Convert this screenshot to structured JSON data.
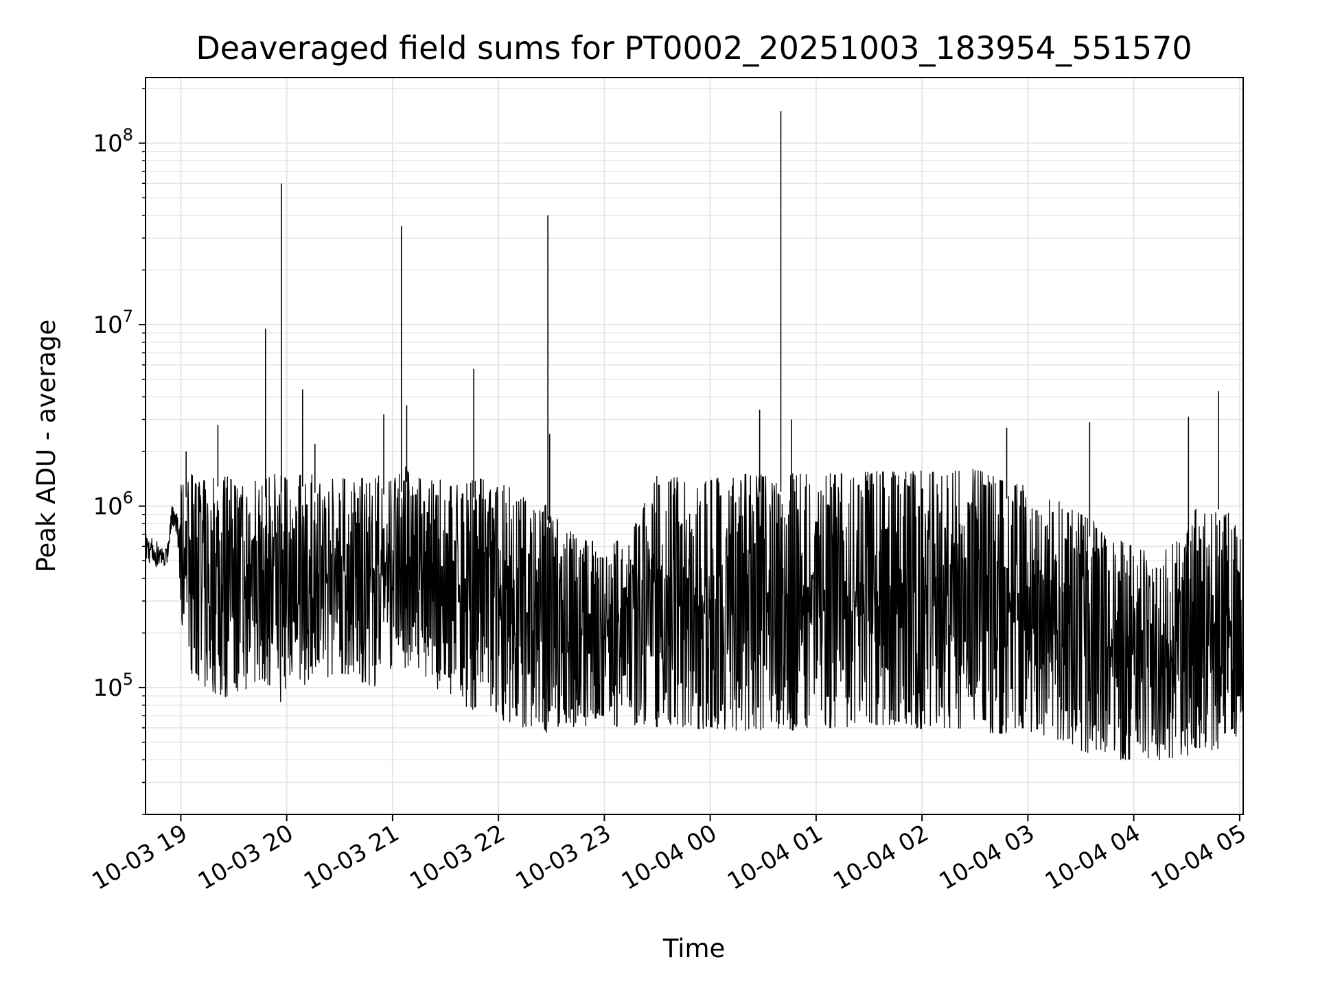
{
  "chart_data": {
    "type": "line",
    "title": "Deaveraged field sums for PT0002_20251003_183954_551570",
    "xlabel": "Time",
    "ylabel": "Peak ADU - average",
    "yscale": "log",
    "ylim": [
      20000,
      230000000
    ],
    "xlim": [
      "2025-10-03 18:40",
      "2025-10-04 05:02"
    ],
    "grid": true,
    "line_color": "#000000",
    "grid_color": "#e6e6e6",
    "x_ticks": [
      "10-03 19",
      "10-03 20",
      "10-03 21",
      "10-03 22",
      "10-03 23",
      "10-04 00",
      "10-04 01",
      "10-04 02",
      "10-04 03",
      "10-04 04",
      "10-04 05"
    ],
    "x_tick_times": [
      "2025-10-03 19:00",
      "2025-10-03 20:00",
      "2025-10-03 21:00",
      "2025-10-03 22:00",
      "2025-10-03 23:00",
      "2025-10-04 00:00",
      "2025-10-04 01:00",
      "2025-10-04 02:00",
      "2025-10-04 03:00",
      "2025-10-04 04:00",
      "2025-10-04 05:00"
    ],
    "y_ticks": [
      {
        "value": 100000,
        "base": "10",
        "exp": "5"
      },
      {
        "value": 1000000,
        "base": "10",
        "exp": "6"
      },
      {
        "value": 10000000,
        "base": "10",
        "exp": "7"
      },
      {
        "value": 100000000,
        "base": "10",
        "exp": "8"
      }
    ],
    "series": [
      {
        "x": [
          "2025-10-03 18:40",
          "2025-10-03 18:46",
          "2025-10-03 18:52",
          "2025-10-03 18:55",
          "2025-10-03 18:58",
          "2025-10-03 19:00",
          "2025-10-03 19:03",
          "2025-10-03 19:06",
          "2025-10-03 19:10",
          "2025-10-03 19:14",
          "2025-10-03 19:18",
          "2025-10-03 19:21",
          "2025-10-03 19:25",
          "2025-10-03 19:30",
          "2025-10-03 19:35",
          "2025-10-03 19:40",
          "2025-10-03 19:45",
          "2025-10-03 19:48",
          "2025-10-03 19:50",
          "2025-10-03 19:52",
          "2025-10-03 19:55",
          "2025-10-03 19:57",
          "2025-10-03 20:00",
          "2025-10-03 20:05",
          "2025-10-03 20:09",
          "2025-10-03 20:15",
          "2025-10-03 20:20",
          "2025-10-03 20:30",
          "2025-10-03 20:40",
          "2025-10-03 20:50",
          "2025-10-03 20:55",
          "2025-10-03 21:00",
          "2025-10-03 21:05",
          "2025-10-03 21:08",
          "2025-10-03 21:12",
          "2025-10-03 21:20",
          "2025-10-03 21:30",
          "2025-10-03 21:40",
          "2025-10-03 21:46",
          "2025-10-03 21:50",
          "2025-10-03 21:55",
          "2025-10-03 22:05",
          "2025-10-03 22:15",
          "2025-10-03 22:25",
          "2025-10-03 22:28",
          "2025-10-03 22:35",
          "2025-10-03 22:45",
          "2025-10-03 23:00",
          "2025-10-03 23:15",
          "2025-10-03 23:30",
          "2025-10-03 23:45",
          "2025-10-04 00:00",
          "2025-10-04 00:15",
          "2025-10-04 00:28",
          "2025-10-04 00:35",
          "2025-10-04 00:40",
          "2025-10-04 00:45",
          "2025-10-04 00:55",
          "2025-10-04 01:10",
          "2025-10-04 01:30",
          "2025-10-04 01:45",
          "2025-10-04 02:00",
          "2025-10-04 02:15",
          "2025-10-04 02:30",
          "2025-10-04 02:45",
          "2025-10-04 02:58",
          "2025-10-04 03:00",
          "2025-10-04 03:15",
          "2025-10-04 03:30",
          "2025-10-04 03:40",
          "2025-10-04 03:45",
          "2025-10-04 04:00",
          "2025-10-04 04:15",
          "2025-10-04 04:30",
          "2025-10-04 04:35",
          "2025-10-04 04:45",
          "2025-10-04 04:48",
          "2025-10-04 05:00"
        ],
        "high": [
          700000,
          650000,
          580000,
          1000000,
          900000,
          1300000,
          1400000,
          1500000,
          1350000,
          1400000,
          1400000,
          1600000,
          1500000,
          1400000,
          1300000,
          1400000,
          1450000,
          1400000,
          1500000,
          1600000,
          1500000,
          1500000,
          1400000,
          1350000,
          1600000,
          1500000,
          1400000,
          1450000,
          1400000,
          1500000,
          1450000,
          1500000,
          1500000,
          1700000,
          1450000,
          1400000,
          1400000,
          1300000,
          1400000,
          1450000,
          1300000,
          1300000,
          1100000,
          1000000,
          1050000,
          800000,
          700000,
          600000,
          700000,
          1500000,
          1450000,
          1400000,
          1500000,
          1500000,
          1450000,
          1500000,
          1500000,
          1550000,
          1500000,
          1550000,
          1550000,
          1600000,
          1550000,
          1600000,
          1400000,
          1300000,
          1000000,
          1100000,
          900000,
          800000,
          700000,
          600000,
          550000,
          700000,
          1000000,
          900000,
          1200000,
          700000
        ],
        "low": [
          500000,
          460000,
          470000,
          800000,
          700000,
          180000,
          250000,
          120000,
          110000,
          100000,
          95000,
          90000,
          85000,
          100000,
          90000,
          110000,
          95000,
          110000,
          100000,
          90000,
          110000,
          75000,
          110000,
          130000,
          100000,
          120000,
          110000,
          120000,
          110000,
          100000,
          120000,
          130000,
          150000,
          120000,
          140000,
          110000,
          90000,
          80000,
          75000,
          80000,
          70000,
          65000,
          60000,
          60000,
          55000,
          60000,
          60000,
          60000,
          62000,
          60000,
          58000,
          60000,
          58000,
          58000,
          60000,
          58000,
          58000,
          60000,
          60000,
          62000,
          62000,
          58000,
          60000,
          58000,
          55000,
          60000,
          55000,
          52000,
          45000,
          42000,
          40000,
          40000,
          40000,
          42000,
          45000,
          45000,
          45000,
          55000
        ]
      }
    ],
    "spikes": [
      {
        "x": "2025-10-03 19:03",
        "y": 2000000
      },
      {
        "x": "2025-10-03 19:21",
        "y": 2800000
      },
      {
        "x": "2025-10-03 19:48",
        "y": 9500000
      },
      {
        "x": "2025-10-03 19:57",
        "y": 60000000
      },
      {
        "x": "2025-10-03 20:09",
        "y": 4400000
      },
      {
        "x": "2025-10-03 20:16",
        "y": 2200000
      },
      {
        "x": "2025-10-03 20:55",
        "y": 3200000
      },
      {
        "x": "2025-10-03 21:05",
        "y": 35000000
      },
      {
        "x": "2025-10-03 21:08",
        "y": 3600000
      },
      {
        "x": "2025-10-03 21:46",
        "y": 5700000
      },
      {
        "x": "2025-10-03 22:28",
        "y": 40000000
      },
      {
        "x": "2025-10-03 22:29",
        "y": 2500000
      },
      {
        "x": "2025-10-04 00:28",
        "y": 3400000
      },
      {
        "x": "2025-10-04 00:40",
        "y": 150000000
      },
      {
        "x": "2025-10-04 00:46",
        "y": 3000000
      },
      {
        "x": "2025-10-04 02:48",
        "y": 2700000
      },
      {
        "x": "2025-10-04 03:35",
        "y": 2900000
      },
      {
        "x": "2025-10-04 04:31",
        "y": 3100000
      },
      {
        "x": "2025-10-04 04:48",
        "y": 4300000
      }
    ]
  }
}
